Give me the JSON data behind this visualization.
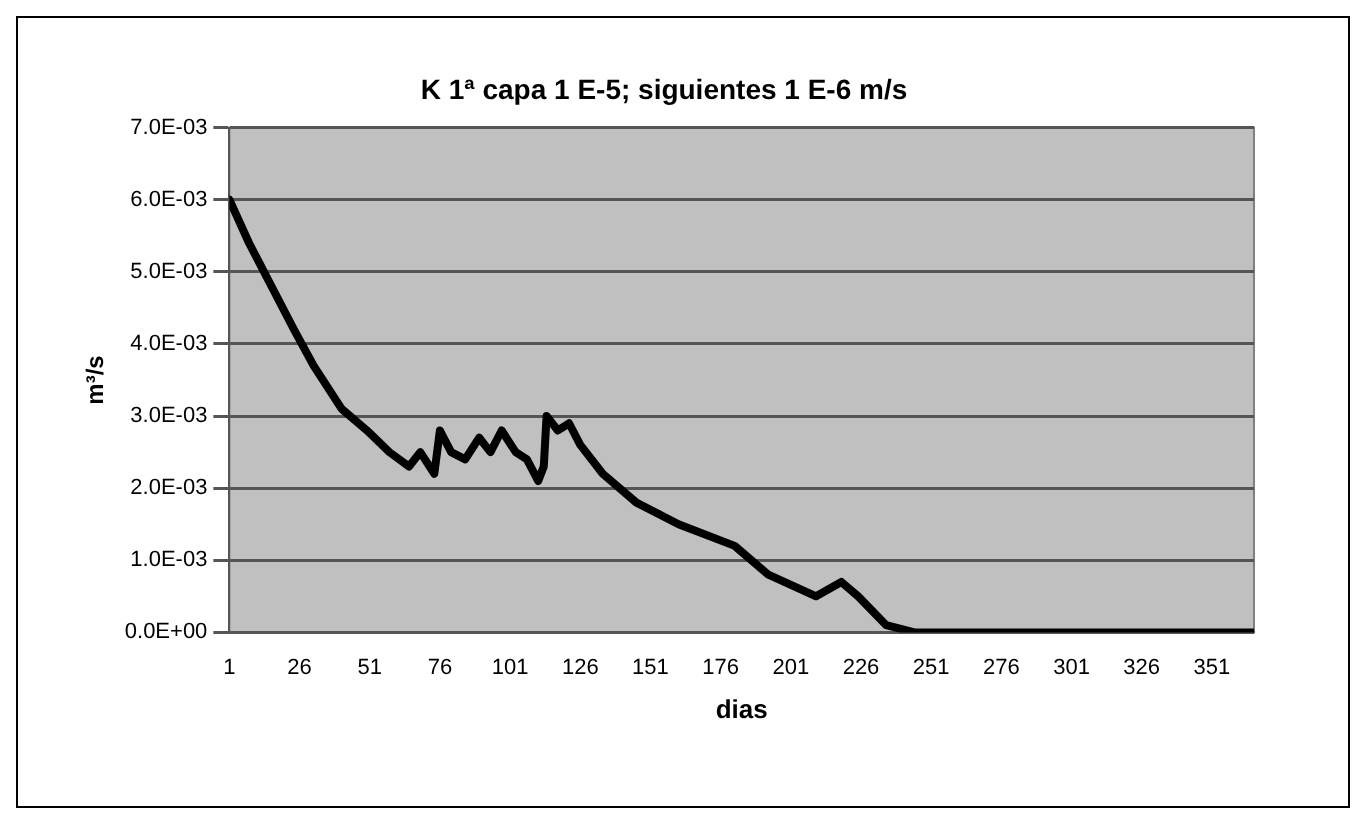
{
  "chart_data": {
    "type": "line",
    "title": "K 1ª capa 1 E-5; siguientes 1 E-6 m/s",
    "xlabel": "dias",
    "ylabel": "m³/s",
    "x": [
      1,
      8,
      16,
      24,
      31,
      41,
      50,
      58,
      65,
      69,
      74,
      76,
      80,
      85,
      90,
      94,
      98,
      103,
      107,
      111,
      113,
      114,
      118,
      122,
      126,
      134,
      146,
      161,
      181,
      193,
      210,
      219,
      225,
      235,
      245,
      300,
      366
    ],
    "series": [
      {
        "color": "#000000",
        "values": [
          0.006,
          0.0054,
          0.0048,
          0.0042,
          0.0037,
          0.0031,
          0.0028,
          0.0025,
          0.0023,
          0.0025,
          0.0022,
          0.0028,
          0.0025,
          0.0024,
          0.0027,
          0.0025,
          0.0028,
          0.0025,
          0.0024,
          0.0021,
          0.0023,
          0.003,
          0.0028,
          0.0029,
          0.0026,
          0.0022,
          0.0018,
          0.0015,
          0.0012,
          0.0008,
          0.0005,
          0.0007,
          0.0005,
          0.0001,
          0.0,
          0.0,
          0.0
        ]
      }
    ],
    "xlim": [
      1,
      366
    ],
    "xticks": [
      1,
      26,
      51,
      76,
      101,
      126,
      151,
      176,
      201,
      226,
      251,
      276,
      301,
      326,
      351
    ],
    "ylim": [
      0,
      0.007
    ],
    "yticks": [
      {
        "value": 0,
        "label": "0.0E+00"
      },
      {
        "value": 0.001,
        "label": "1.0E-03"
      },
      {
        "value": 0.002,
        "label": "2.0E-03"
      },
      {
        "value": 0.003,
        "label": "3.0E-03"
      },
      {
        "value": 0.004,
        "label": "4.0E-03"
      },
      {
        "value": 0.005,
        "label": "5.0E-03"
      },
      {
        "value": 0.006,
        "label": "6.0E-03"
      },
      {
        "value": 0.007,
        "label": "7.0E-03"
      }
    ],
    "grid": "y",
    "legend": false,
    "marker": "none",
    "line_style": "solid"
  }
}
